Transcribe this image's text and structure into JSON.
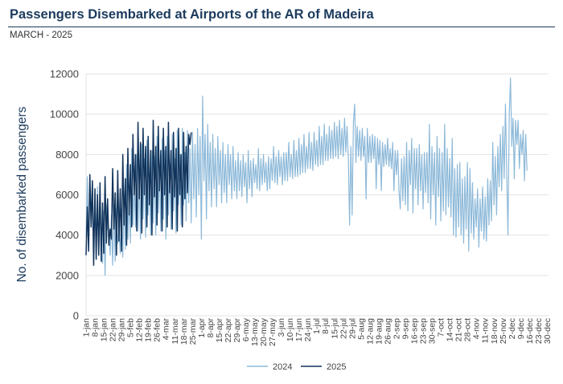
{
  "header": {
    "title": "Passengers Disembarked at Airports of the AR of Madeira",
    "subtitle": "MARCH - 2025"
  },
  "colors": {
    "s2024": "#8db9d9",
    "s2025": "#12345b",
    "grid": "#e3e3e3",
    "title": "#1b3a5c"
  },
  "chart_data": {
    "type": "line",
    "ylabel": "No. of disembarked passengers",
    "ylim": [
      0,
      12000
    ],
    "yticks": [
      0,
      2000,
      4000,
      6000,
      8000,
      10000,
      12000
    ],
    "xlim": [
      1,
      366
    ],
    "xticks": [
      {
        "day": 1,
        "label": "1-jan"
      },
      {
        "day": 8,
        "label": "8-jan"
      },
      {
        "day": 15,
        "label": "15-jan"
      },
      {
        "day": 22,
        "label": "22-jan"
      },
      {
        "day": 29,
        "label": "29-jan"
      },
      {
        "day": 36,
        "label": "5-feb"
      },
      {
        "day": 43,
        "label": "12-feb"
      },
      {
        "day": 50,
        "label": "19-feb"
      },
      {
        "day": 57,
        "label": "26-feb"
      },
      {
        "day": 64,
        "label": "4-mar"
      },
      {
        "day": 71,
        "label": "11-mar"
      },
      {
        "day": 78,
        "label": "18-mar"
      },
      {
        "day": 85,
        "label": "25-mar"
      },
      {
        "day": 92,
        "label": "1-apr"
      },
      {
        "day": 99,
        "label": "8-apr"
      },
      {
        "day": 106,
        "label": "15-apr"
      },
      {
        "day": 113,
        "label": "22-apr"
      },
      {
        "day": 120,
        "label": "29-apr"
      },
      {
        "day": 127,
        "label": "6-may"
      },
      {
        "day": 134,
        "label": "13-may"
      },
      {
        "day": 141,
        "label": "20-may"
      },
      {
        "day": 148,
        "label": "27-may"
      },
      {
        "day": 155,
        "label": "3-jun"
      },
      {
        "day": 162,
        "label": "10-jun"
      },
      {
        "day": 169,
        "label": "17-jun"
      },
      {
        "day": 176,
        "label": "24-jun"
      },
      {
        "day": 183,
        "label": "1-jul"
      },
      {
        "day": 190,
        "label": "8-jul"
      },
      {
        "day": 197,
        "label": "15-jul"
      },
      {
        "day": 204,
        "label": "22-jul"
      },
      {
        "day": 211,
        "label": "29-jul"
      },
      {
        "day": 218,
        "label": "5-aug"
      },
      {
        "day": 225,
        "label": "12-aug"
      },
      {
        "day": 232,
        "label": "19-aug"
      },
      {
        "day": 239,
        "label": "26-aug"
      },
      {
        "day": 246,
        "label": "2-sep"
      },
      {
        "day": 253,
        "label": "9-sep"
      },
      {
        "day": 260,
        "label": "16-sep"
      },
      {
        "day": 267,
        "label": "23-sep"
      },
      {
        "day": 274,
        "label": "30-sep"
      },
      {
        "day": 281,
        "label": "7-oct"
      },
      {
        "day": 288,
        "label": "14-oct"
      },
      {
        "day": 295,
        "label": "21-oct"
      },
      {
        "day": 302,
        "label": "28-oct"
      },
      {
        "day": 309,
        "label": "4-nov"
      },
      {
        "day": 316,
        "label": "11-nov"
      },
      {
        "day": 323,
        "label": "18-nov"
      },
      {
        "day": 330,
        "label": "25-nov"
      },
      {
        "day": 337,
        "label": "2-dec"
      },
      {
        "day": 344,
        "label": "9-dec"
      },
      {
        "day": 351,
        "label": "16-dec"
      },
      {
        "day": 358,
        "label": "23-dec"
      },
      {
        "day": 365,
        "label": "30-dec"
      }
    ],
    "grid": true,
    "legend": "bottom-center",
    "series": [
      {
        "name": "2024",
        "color": "#8db9d9",
        "values": [
          3900,
          6900,
          3200,
          6400,
          4400,
          6700,
          3500,
          5300,
          3800,
          6400,
          3100,
          5600,
          3000,
          2600,
          5200,
          2000,
          5500,
          4300,
          4200,
          3000,
          5000,
          2500,
          5500,
          2700,
          5300,
          3600,
          4200,
          3100,
          5300,
          2900,
          6000,
          3300,
          7500,
          3800,
          5900,
          3600,
          8300,
          4500,
          6600,
          4400,
          8000,
          4200,
          7200,
          3800,
          8500,
          4800,
          7800,
          3900,
          8700,
          5000,
          7000,
          4000,
          8200,
          4600,
          7900,
          4000,
          8900,
          5100,
          7400,
          4200,
          8800,
          4800,
          8200,
          3800,
          8900,
          5000,
          7500,
          4300,
          9000,
          5200,
          7800,
          4100,
          9200,
          5500,
          8000,
          4500,
          9300,
          5500,
          8100,
          4700,
          9200,
          5600,
          8300,
          4600,
          9100,
          5800,
          8500,
          4900,
          9300,
          6000,
          8900,
          3800,
          10900,
          6700,
          9000,
          4800,
          9500,
          6200,
          8600,
          5400,
          9000,
          6300,
          8300,
          5400,
          8900,
          6500,
          8200,
          5600,
          8600,
          6100,
          8000,
          5600,
          8500,
          6500,
          8000,
          5800,
          8400,
          6200,
          7700,
          5800,
          8100,
          6200,
          7700,
          5900,
          8000,
          6400,
          7600,
          5600,
          8200,
          6300,
          7700,
          5900,
          7800,
          6600,
          7500,
          6300,
          8300,
          6200,
          7800,
          6500,
          8000,
          6600,
          7600,
          6200,
          7900,
          6300,
          7800,
          6700,
          8400,
          6600,
          7900,
          6500,
          8200,
          6900,
          7900,
          6500,
          8100,
          6700,
          8100,
          6700,
          8600,
          6900,
          8000,
          6800,
          8700,
          6900,
          8200,
          6900,
          8800,
          7000,
          8500,
          7100,
          9000,
          7100,
          8400,
          7300,
          9100,
          7300,
          8600,
          7200,
          9100,
          7500,
          8700,
          7400,
          9400,
          7500,
          8900,
          7500,
          9500,
          7700,
          9000,
          7700,
          9400,
          7800,
          9200,
          7800,
          9600,
          7900,
          9400,
          7800,
          9700,
          8000,
          9300,
          7900,
          9800,
          8100,
          9400,
          7800,
          4500,
          8400,
          5000,
          9600,
          10500,
          7600,
          9400,
          7900,
          9200,
          7700,
          9300,
          7900,
          8900,
          5800,
          9300,
          7600,
          8900,
          7600,
          9000,
          7800,
          8900,
          6300,
          8800,
          7500,
          8700,
          6200,
          8600,
          7400,
          8500,
          7500,
          8800,
          7400,
          8300,
          7300,
          8600,
          6200,
          8200,
          7000,
          8200,
          6200,
          5300,
          7800,
          5700,
          7900,
          5500,
          8600,
          5200,
          8200,
          6500,
          8800,
          5100,
          8300,
          6300,
          8300,
          5500,
          8500,
          6200,
          8000,
          5300,
          8100,
          6100,
          8100,
          5600,
          9500,
          4800,
          8400,
          6000,
          8100,
          4500,
          8900,
          5900,
          8300,
          4700,
          8100,
          5200,
          9500,
          5000,
          8300,
          5400,
          7800,
          4900,
          8800,
          4000,
          7300,
          3900,
          7500,
          4400,
          7600,
          4000,
          6800,
          3600,
          6900,
          4300,
          7600,
          3200,
          7300,
          4100,
          6600,
          3800,
          5800,
          4400,
          6300,
          3400,
          5800,
          4200,
          6400,
          3800,
          5900,
          3700,
          6800,
          4500,
          6700,
          4700,
          8600,
          5500,
          7900,
          5000,
          8400,
          6400,
          9000,
          6200,
          9400,
          6800,
          10500,
          7100,
          4000,
          10000,
          11800,
          8400,
          9800,
          6800,
          9700,
          8500,
          9700,
          7300,
          9000,
          8000,
          9200,
          6700,
          9000,
          7200
        ],
        "note_points": 366
      },
      {
        "name": "2025",
        "color": "#12345b",
        "values": [
          3000,
          5400,
          3200,
          7000,
          4400,
          6700,
          2500,
          6300,
          2800,
          6000,
          3000,
          6600,
          2700,
          5600,
          3100,
          6900,
          3600,
          5800,
          3500,
          4300,
          3800,
          7300,
          4300,
          6100,
          3000,
          7200,
          3700,
          6300,
          3200,
          8000,
          4500,
          6800,
          3500,
          8300,
          5000,
          7500,
          4400,
          9000,
          6000,
          8000,
          4200,
          9600,
          5800,
          8600,
          4100,
          9300,
          6000,
          8400,
          4400,
          8900,
          5500,
          8200,
          4000,
          9700,
          5900,
          8400,
          4500,
          9400,
          6200,
          8200,
          4200,
          9300,
          6000,
          8400,
          4400,
          9600,
          6100,
          8200,
          4300,
          9100,
          5900,
          8300,
          4200,
          9300,
          6000,
          8000,
          4400,
          9100,
          5800,
          8400,
          6100,
          9000,
          8500,
          9100
        ]
      }
    ]
  },
  "legend": {
    "items": [
      {
        "label": "2024"
      },
      {
        "label": "2025"
      }
    ]
  }
}
